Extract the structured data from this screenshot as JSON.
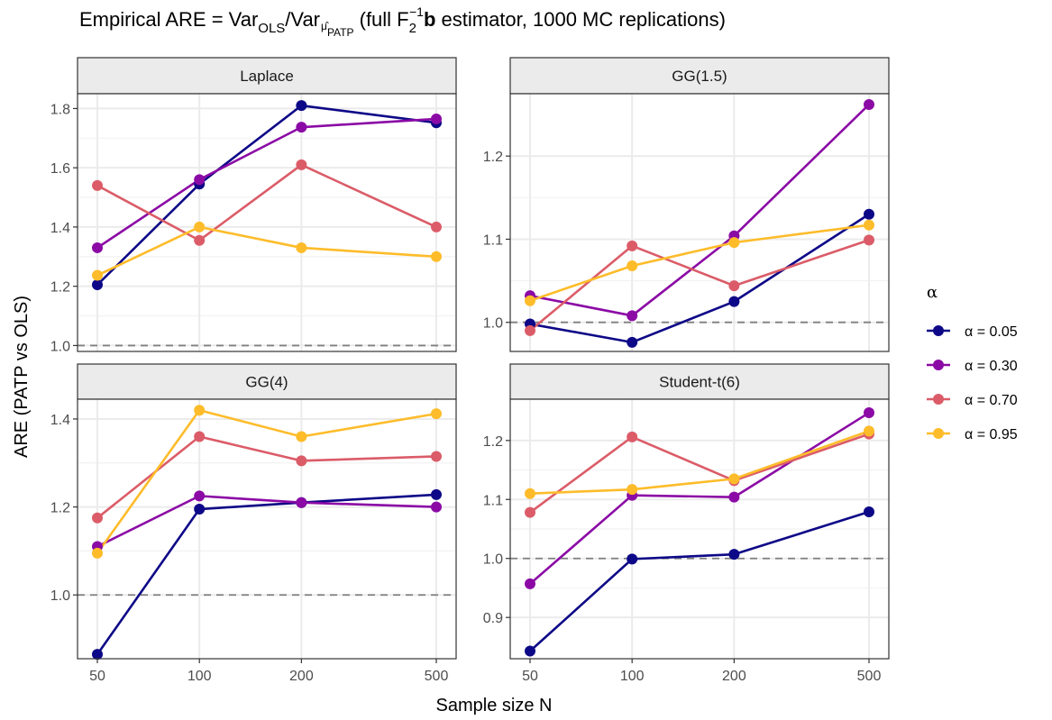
{
  "title": {
    "prefix": "Empirical ARE = Var",
    "sub_ols": "OLS",
    "slash": "/Var",
    "sub_mu": "μ̂",
    "sub_patp": "PATP",
    "middle": " (full F",
    "sub_2": "2",
    "sup_inv": "−1",
    "bold_b": "b",
    "suffix": " estimator, 1000 MC replications)"
  },
  "xlabel": "Sample size N",
  "ylabel": "ARE (PATP vs OLS)",
  "legend": {
    "title": "α",
    "items": [
      {
        "label": "α = 0.05",
        "color": "#0D0887"
      },
      {
        "label": "α = 0.30",
        "color": "#8B0AA5"
      },
      {
        "label": "α = 0.70",
        "color": "#DB5C68"
      },
      {
        "label": "α = 0.95",
        "color": "#FEBC2A"
      }
    ]
  },
  "chart_data": [
    {
      "type": "line",
      "title": "Laplace",
      "x": [
        50,
        100,
        200,
        500
      ],
      "x_scale": "log",
      "y_ticks": [
        1.0,
        1.2,
        1.4,
        1.6,
        1.8
      ],
      "ylim": [
        0.98,
        1.85
      ],
      "reference_line": 1.0,
      "series": [
        {
          "name": "α = 0.05",
          "values": [
            1.205,
            1.545,
            1.81,
            1.752
          ]
        },
        {
          "name": "α = 0.30",
          "values": [
            1.33,
            1.56,
            1.737,
            1.765
          ]
        },
        {
          "name": "α = 0.70",
          "values": [
            1.54,
            1.355,
            1.61,
            1.4
          ]
        },
        {
          "name": "α = 0.95",
          "values": [
            1.237,
            1.4,
            1.33,
            1.3
          ]
        }
      ]
    },
    {
      "type": "line",
      "title": "GG(1.5)",
      "x": [
        50,
        100,
        200,
        500
      ],
      "x_scale": "log",
      "y_ticks": [
        1.0,
        1.1,
        1.2
      ],
      "ylim": [
        0.965,
        1.275
      ],
      "reference_line": 1.0,
      "series": [
        {
          "name": "α = 0.05",
          "values": [
            0.998,
            0.976,
            1.025,
            1.13
          ]
        },
        {
          "name": "α = 0.30",
          "values": [
            1.032,
            1.008,
            1.104,
            1.262
          ]
        },
        {
          "name": "α = 0.70",
          "values": [
            0.99,
            1.092,
            1.044,
            1.099
          ]
        },
        {
          "name": "α = 0.95",
          "values": [
            1.026,
            1.068,
            1.096,
            1.117
          ]
        }
      ]
    },
    {
      "type": "line",
      "title": "GG(4)",
      "x": [
        50,
        100,
        200,
        500
      ],
      "x_scale": "log",
      "y_ticks": [
        1.0,
        1.2,
        1.4
      ],
      "ylim": [
        0.855,
        1.445
      ],
      "reference_line": 1.0,
      "series": [
        {
          "name": "α = 0.05",
          "values": [
            0.865,
            1.195,
            1.21,
            1.228
          ]
        },
        {
          "name": "α = 0.30",
          "values": [
            1.11,
            1.225,
            1.21,
            1.2
          ]
        },
        {
          "name": "α = 0.70",
          "values": [
            1.175,
            1.36,
            1.305,
            1.315
          ]
        },
        {
          "name": "α = 0.95",
          "values": [
            1.095,
            1.42,
            1.36,
            1.412
          ]
        }
      ]
    },
    {
      "type": "line",
      "title": "Student-t(6)",
      "x": [
        50,
        100,
        200,
        500
      ],
      "x_scale": "log",
      "y_ticks": [
        0.9,
        1.0,
        1.1,
        1.2
      ],
      "ylim": [
        0.83,
        1.27
      ],
      "reference_line": 1.0,
      "series": [
        {
          "name": "α = 0.05",
          "values": [
            0.843,
            0.999,
            1.007,
            1.079
          ]
        },
        {
          "name": "α = 0.30",
          "values": [
            0.957,
            1.107,
            1.104,
            1.247
          ]
        },
        {
          "name": "α = 0.70",
          "values": [
            1.078,
            1.206,
            1.132,
            1.211
          ]
        },
        {
          "name": "α = 0.95",
          "values": [
            1.11,
            1.117,
            1.135,
            1.216
          ]
        }
      ]
    }
  ]
}
